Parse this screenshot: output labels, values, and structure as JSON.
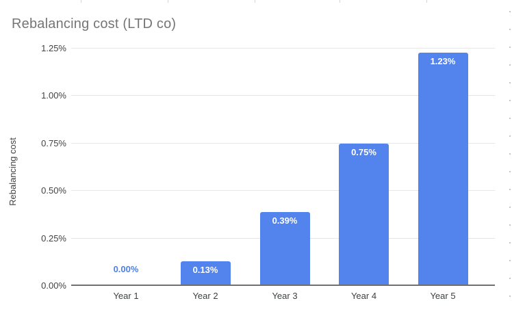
{
  "chart_data": {
    "type": "bar",
    "title": "Rebalancing cost (LTD co)",
    "xlabel": "",
    "ylabel": "Rebalancing cost",
    "categories": [
      "Year 1",
      "Year 2",
      "Year 3",
      "Year 4",
      "Year 5"
    ],
    "values": [
      0.0,
      0.13,
      0.39,
      0.75,
      1.23
    ],
    "bar_labels": [
      "0.00%",
      "0.13%",
      "0.39%",
      "0.75%",
      "1.23%"
    ],
    "yticks": [
      "0.00%",
      "0.25%",
      "0.50%",
      "0.75%",
      "1.00%",
      "1.25%"
    ],
    "ytick_values": [
      0,
      0.25,
      0.5,
      0.75,
      1.0,
      1.25
    ],
    "ylim": [
      0,
      1.25
    ],
    "grid": true,
    "legend": "none",
    "colors": {
      "bar": "#5383EC",
      "bar_label_on_bar": "#FFFFFF",
      "bar_label_zero": "#4A80E8",
      "title": "#757575",
      "axis_text": "#424242",
      "category_text": "#3C4043",
      "gridline": "#E6E6E6",
      "axis_line": "#6F6F6F"
    }
  }
}
